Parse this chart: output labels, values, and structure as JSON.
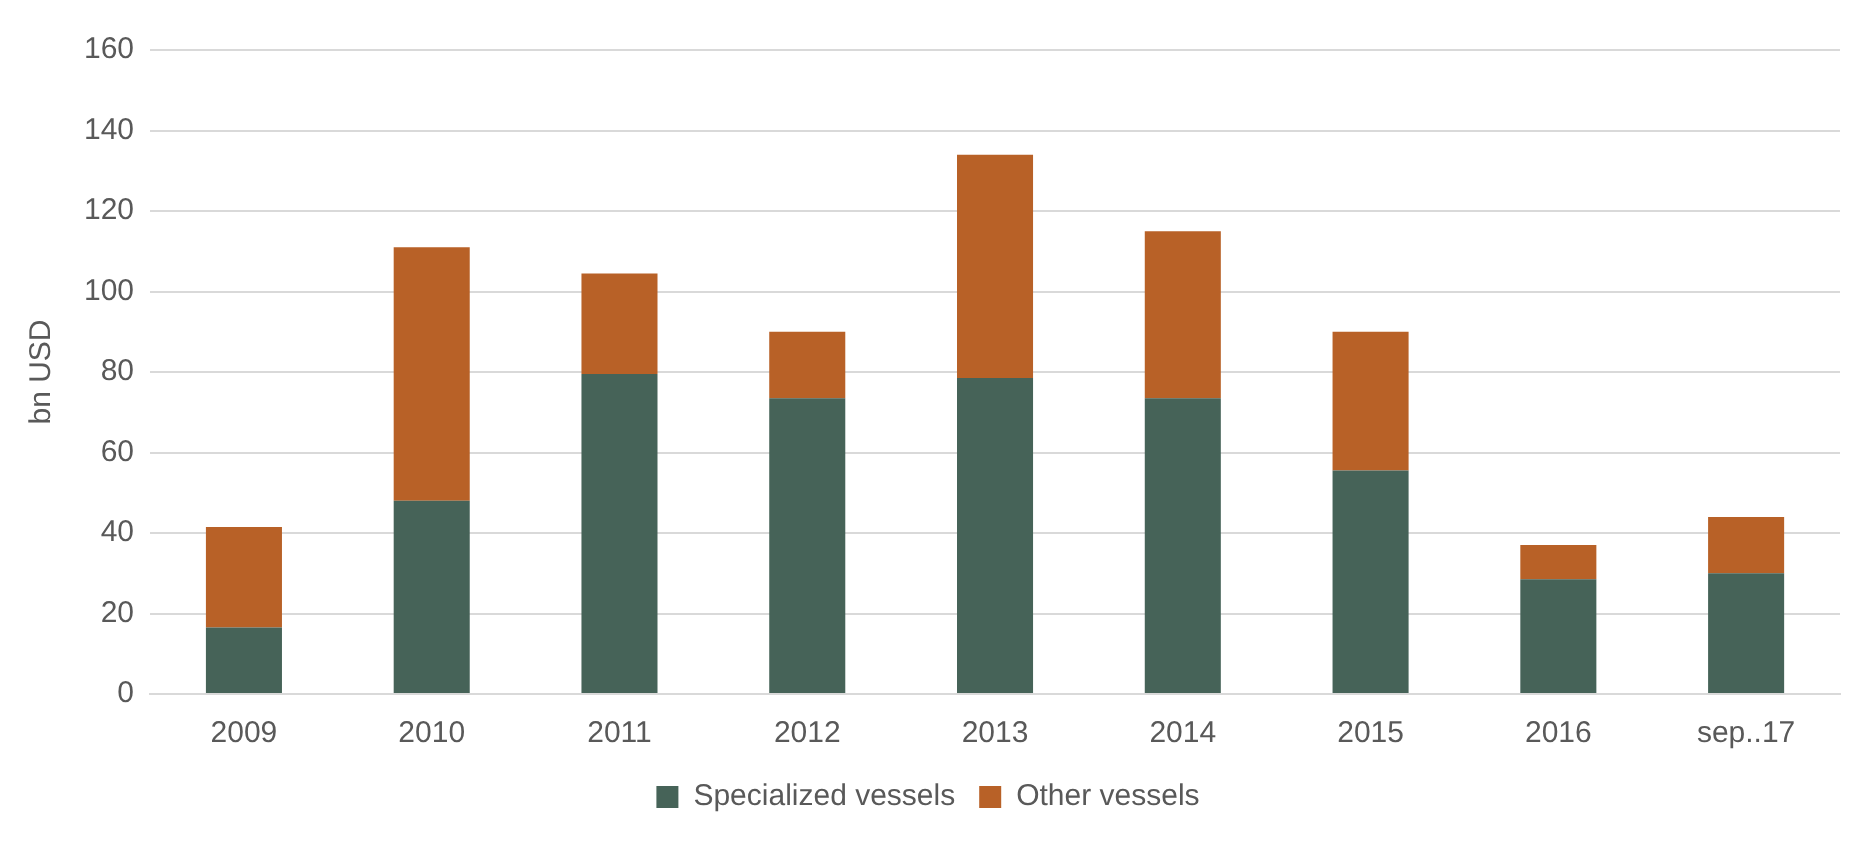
{
  "chart_data": {
    "type": "bar",
    "stacked": true,
    "ylabel": "bn USD",
    "categories": [
      "2009",
      "2010",
      "2011",
      "2012",
      "2013",
      "2014",
      "2015",
      "2016",
      "sep..17"
    ],
    "series": [
      {
        "name": "Specialized vessels",
        "color": "#466358",
        "values": [
          16.5,
          48,
          79.5,
          73.5,
          78.5,
          73.5,
          55.5,
          28.5,
          30
        ]
      },
      {
        "name": "Other vessels",
        "color": "#b86127",
        "values": [
          25,
          63,
          25,
          16.5,
          55.5,
          41.5,
          34.5,
          8.5,
          14
        ]
      }
    ],
    "ylim": [
      0,
      160
    ],
    "yticks": [
      0,
      20,
      40,
      60,
      80,
      100,
      120,
      140,
      160
    ],
    "grid": "y",
    "legend": "bottom"
  }
}
